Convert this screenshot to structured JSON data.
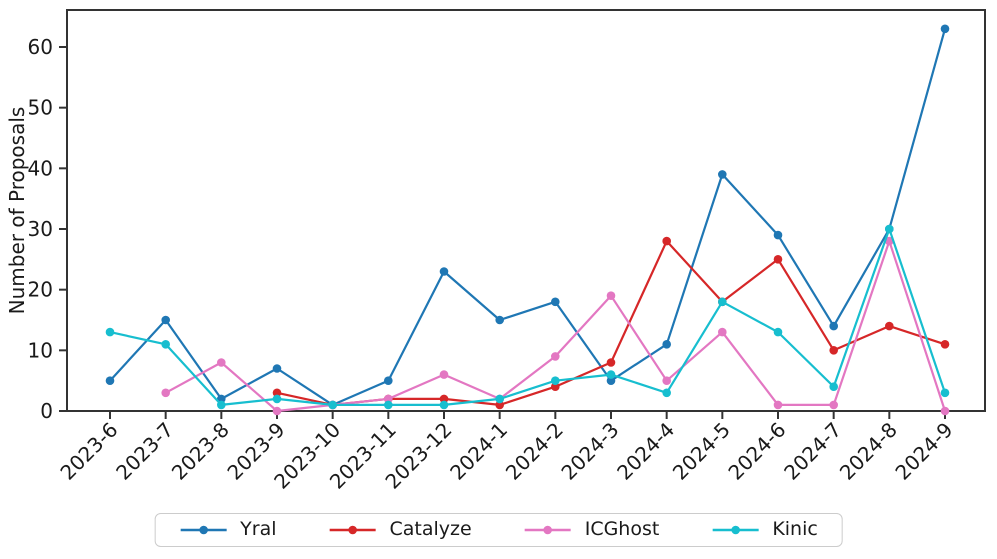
{
  "figure": {
    "background": "#ffffff",
    "axis_color": "#333333",
    "text_color": "#1a1a1a",
    "legend_border_color": "#cccccc"
  },
  "chart_data": {
    "type": "line",
    "title": "",
    "xlabel": "",
    "ylabel": "Number of Proposals",
    "ylim": [
      0,
      66
    ],
    "yticks": [
      0,
      10,
      20,
      30,
      40,
      50,
      60
    ],
    "x_tick_rotation": 45,
    "grid": false,
    "legend_position": "bottom-center",
    "categories": [
      "2023-6",
      "2023-7",
      "2023-8",
      "2023-9",
      "2023-10",
      "2023-11",
      "2023-12",
      "2024-1",
      "2024-2",
      "2024-3",
      "2024-4",
      "2024-5",
      "2024-6",
      "2024-7",
      "2024-8",
      "2024-9"
    ],
    "series": [
      {
        "name": "Yral",
        "color": "#1f77b4",
        "values": [
          5,
          15,
          2,
          7,
          1,
          5,
          23,
          15,
          18,
          5,
          11,
          39,
          29,
          14,
          30,
          63
        ]
      },
      {
        "name": "Catalyze",
        "color": "#d62728",
        "values": [
          null,
          null,
          null,
          3,
          1,
          2,
          2,
          1,
          4,
          8,
          28,
          18,
          25,
          10,
          14,
          11
        ]
      },
      {
        "name": "ICGhost",
        "color": "#e377c2",
        "values": [
          null,
          3,
          8,
          0,
          1,
          2,
          6,
          2,
          9,
          19,
          5,
          13,
          1,
          1,
          28,
          0
        ]
      },
      {
        "name": "Kinic",
        "color": "#17becf",
        "values": [
          13,
          11,
          1,
          2,
          1,
          1,
          1,
          2,
          5,
          6,
          3,
          18,
          13,
          4,
          30,
          3
        ]
      }
    ]
  }
}
